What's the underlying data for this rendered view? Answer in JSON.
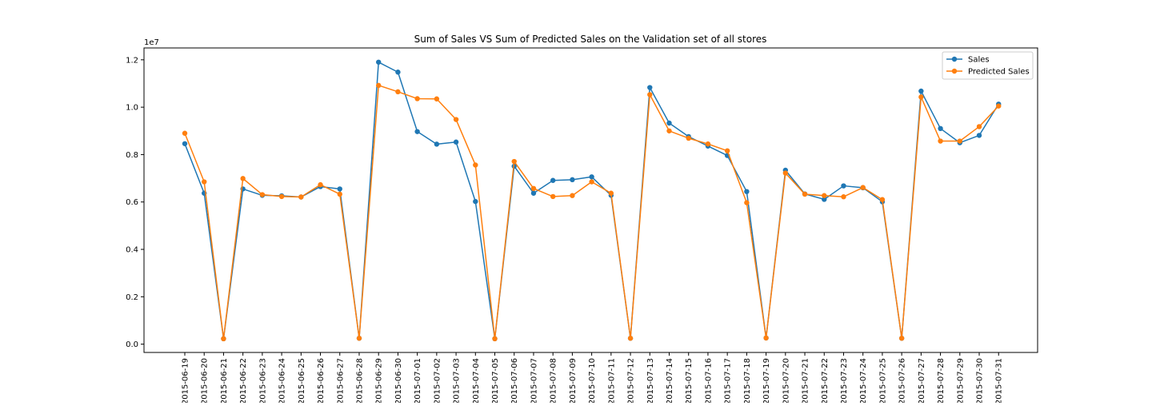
{
  "chart_data": {
    "type": "line",
    "title": "Sum of Sales VS Sum of Predicted Sales on the Validation set of all stores",
    "xlabel": "",
    "ylabel": "",
    "y_offset_label": "1e7",
    "ylim": [
      -0.035,
      1.25
    ],
    "yticks": [
      0.0,
      0.2,
      0.4,
      0.6,
      0.8,
      1.0,
      1.2
    ],
    "ytick_labels": [
      "0.0",
      "0.2",
      "0.4",
      "0.6",
      "0.8",
      "1.0",
      "1.2"
    ],
    "legend_position": "top-right",
    "grid": false,
    "categories": [
      "2015-06-19",
      "2015-06-20",
      "2015-06-21",
      "2015-06-22",
      "2015-06-23",
      "2015-06-24",
      "2015-06-25",
      "2015-06-26",
      "2015-06-27",
      "2015-06-28",
      "2015-06-29",
      "2015-06-30",
      "2015-07-01",
      "2015-07-02",
      "2015-07-03",
      "2015-07-04",
      "2015-07-05",
      "2015-07-06",
      "2015-07-07",
      "2015-07-08",
      "2015-07-09",
      "2015-07-10",
      "2015-07-11",
      "2015-07-12",
      "2015-07-13",
      "2015-07-14",
      "2015-07-15",
      "2015-07-16",
      "2015-07-17",
      "2015-07-18",
      "2015-07-19",
      "2015-07-20",
      "2015-07-21",
      "2015-07-22",
      "2015-07-23",
      "2015-07-24",
      "2015-07-25",
      "2015-07-26",
      "2015-07-27",
      "2015-07-28",
      "2015-07-29",
      "2015-07-30",
      "2015-07-31"
    ],
    "series": [
      {
        "name": "Sales",
        "color": "#1f77b4",
        "values": [
          0.846,
          0.637,
          0.023,
          0.655,
          0.628,
          0.626,
          0.621,
          0.665,
          0.655,
          0.025,
          1.19,
          1.148,
          0.897,
          0.844,
          0.853,
          0.602,
          0.023,
          0.751,
          0.637,
          0.691,
          0.694,
          0.706,
          0.628,
          0.025,
          1.083,
          0.933,
          0.876,
          0.836,
          0.796,
          0.644,
          0.026,
          0.734,
          0.634,
          0.611,
          0.668,
          0.66,
          0.601,
          0.025,
          1.068,
          0.91,
          0.85,
          0.881,
          1.013
        ]
      },
      {
        "name": "Predicted Sales",
        "color": "#ff7f0e",
        "values": [
          0.89,
          0.685,
          0.023,
          0.699,
          0.631,
          0.623,
          0.621,
          0.673,
          0.633,
          0.025,
          1.092,
          1.065,
          1.036,
          1.035,
          0.948,
          0.756,
          0.023,
          0.771,
          0.657,
          0.623,
          0.627,
          0.685,
          0.637,
          0.025,
          1.053,
          0.9,
          0.869,
          0.845,
          0.816,
          0.597,
          0.026,
          0.722,
          0.633,
          0.627,
          0.622,
          0.661,
          0.61,
          0.025,
          1.043,
          0.857,
          0.857,
          0.918,
          1.005
        ]
      }
    ]
  }
}
